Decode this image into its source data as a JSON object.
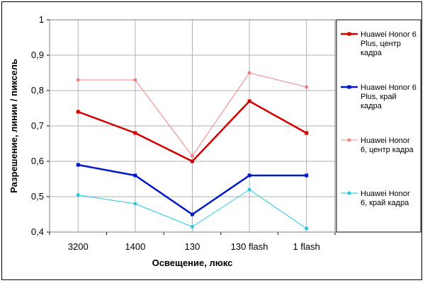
{
  "chart_data": {
    "type": "line",
    "title": "",
    "xlabel": "Освещение, люкс",
    "ylabel": "Разрешение, линии / пиксель",
    "categories": [
      "3200",
      "1400",
      "130",
      "130 flash",
      "1 flash"
    ],
    "ylim": [
      0.4,
      1.0
    ],
    "yticks": [
      "0,4",
      "0,5",
      "0,6",
      "0,7",
      "0,8",
      "0,9",
      "1"
    ],
    "grid": true,
    "legend_position": "right",
    "series": [
      {
        "name": "Huawei Honor 6 Plus, центр кадра",
        "color": "#d40000",
        "width": 2.5,
        "marker": "square",
        "values": [
          0.74,
          0.68,
          0.6,
          0.77,
          0.68
        ]
      },
      {
        "name": "Huawei Honor 6 Plus, край кадра",
        "color": "#0018c8",
        "width": 2.5,
        "marker": "square",
        "values": [
          0.59,
          0.56,
          0.45,
          0.56,
          0.56
        ]
      },
      {
        "name": "Huawei Honor 6, центр кадра",
        "color": "#f08080",
        "width": 1,
        "marker": "circle",
        "values": [
          0.83,
          0.83,
          0.615,
          0.85,
          0.81
        ]
      },
      {
        "name": "Huawei Honor 6, край кадра",
        "color": "#22c8e0",
        "width": 1,
        "marker": "circle",
        "values": [
          0.505,
          0.48,
          0.415,
          0.52,
          0.41
        ]
      }
    ]
  }
}
